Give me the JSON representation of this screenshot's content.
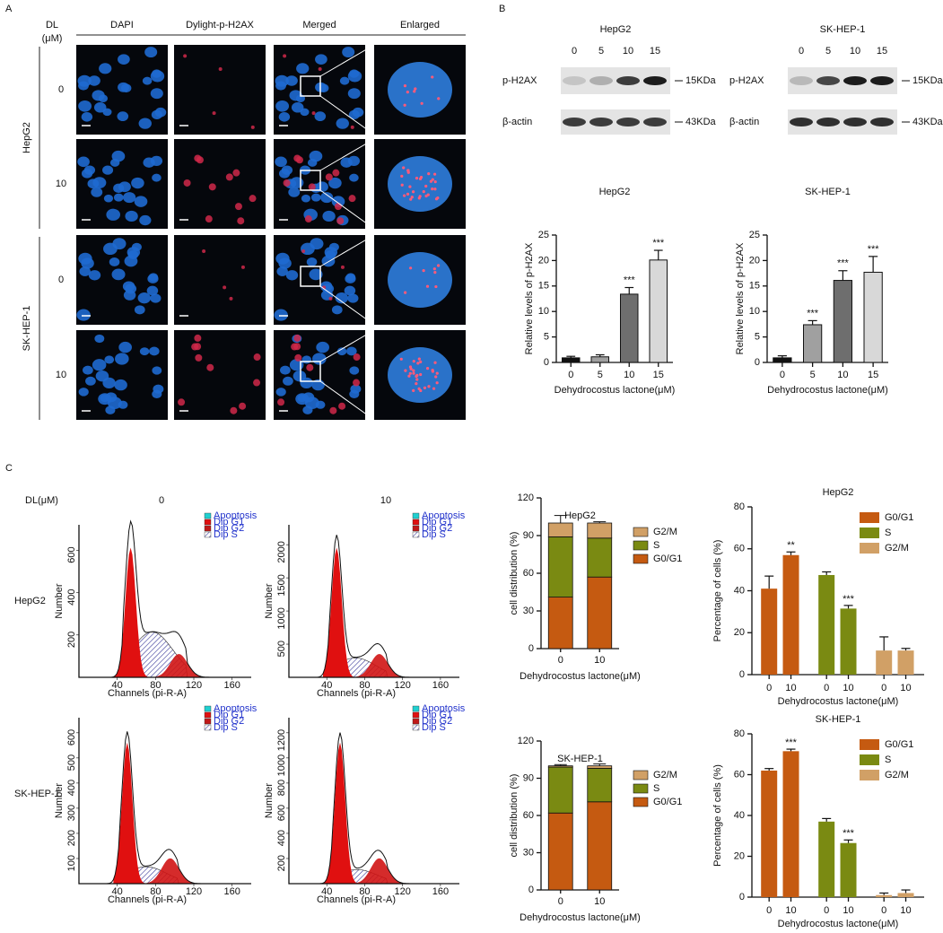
{
  "panel_labels": [
    "A",
    "B",
    "C"
  ],
  "panel_a": {
    "dl_label": "DL",
    "unit_label": "(μM)",
    "columns": [
      "DAPI",
      "Dylight-p-H2AX",
      "Merged",
      "Enlarged"
    ],
    "groups": [
      {
        "name": "HepG2",
        "doses": [
          "0",
          "10"
        ]
      },
      {
        "name": "SK-HEP-1",
        "doses": [
          "0",
          "10"
        ]
      }
    ]
  },
  "western": [
    {
      "cell_line": "HepG2",
      "lanes": [
        "0",
        "5",
        "10",
        "15"
      ],
      "bands": [
        {
          "protein": "p-H2AX",
          "size": "15KDa"
        },
        {
          "protein": "β-actin",
          "size": "43KDa"
        }
      ]
    },
    {
      "cell_line": "SK-HEP-1",
      "lanes": [
        "0",
        "5",
        "10",
        "15"
      ],
      "bands": [
        {
          "protein": "p-H2AX",
          "size": "15KDa"
        },
        {
          "protein": "β-actin",
          "size": "43KDa"
        }
      ]
    }
  ],
  "flow": {
    "dl_label": "DL(μM)",
    "doses": [
      "0",
      "10"
    ],
    "rows": [
      "HepG2",
      "SK-HEP-1"
    ],
    "legend": [
      "Apoptosis",
      "Dip G1",
      "Dip G2",
      "Dip S"
    ],
    "x_label": "Channels (pi-R-A)",
    "y_label": "Number",
    "xticks": [
      "40",
      "80",
      "120",
      "160"
    ],
    "panels": [
      {
        "yticks": [
          "200",
          "400",
          "600"
        ]
      },
      {
        "yticks": [
          "500",
          "1000",
          "1500",
          "2000"
        ]
      },
      {
        "yticks": [
          "100",
          "200",
          "300",
          "400",
          "500",
          "600"
        ]
      },
      {
        "yticks": [
          "200",
          "400",
          "600",
          "800",
          "1000",
          "1200"
        ]
      }
    ]
  },
  "chart_data": [
    {
      "type": "bar",
      "title": "HepG2",
      "x_label": "Dehydrocostus lactone(μM)",
      "y_label": "Relative levels of p-H2AX",
      "categories": [
        "0",
        "5",
        "10",
        "15"
      ],
      "values": [
        0.9,
        1.1,
        13.4,
        20.1
      ],
      "errors": [
        0.3,
        0.4,
        1.3,
        1.9
      ],
      "colors": [
        "#111111",
        "#a0a0a0",
        "#6e6e6e",
        "#d8d8d8"
      ],
      "annotations": [
        null,
        null,
        "***",
        "***"
      ],
      "ylim": [
        0,
        25
      ],
      "yticks": [
        0,
        5,
        10,
        15,
        20,
        25
      ]
    },
    {
      "type": "bar",
      "title": "SK-HEP-1",
      "x_label": "Dehydrocostus lactone(μM)",
      "y_label": "Relative levels of p-H2AX",
      "categories": [
        "0",
        "5",
        "10",
        "15"
      ],
      "values": [
        0.9,
        7.4,
        16.1,
        17.7
      ],
      "errors": [
        0.4,
        0.8,
        1.9,
        3.1
      ],
      "colors": [
        "#111111",
        "#a0a0a0",
        "#6e6e6e",
        "#d8d8d8"
      ],
      "annotations": [
        null,
        "***",
        "***",
        "***"
      ],
      "ylim": [
        0,
        25
      ],
      "yticks": [
        0,
        5,
        10,
        15,
        20,
        25
      ]
    },
    {
      "type": "stacked_bar",
      "title": "HepG2",
      "x_label": "Dehydrocostus lactone(μM)",
      "y_label": "cell distribution (%)",
      "categories": [
        "0",
        "10"
      ],
      "series": [
        {
          "name": "G0/G1",
          "color": "#c55a11",
          "values": [
            41,
            57
          ],
          "errors": [
            6,
            1
          ]
        },
        {
          "name": "S",
          "color": "#7a8a12",
          "values": [
            48,
            31
          ],
          "errors": [
            2,
            1.5
          ]
        },
        {
          "name": "G2/M",
          "color": "#d1a066",
          "values": [
            11,
            12
          ],
          "errors": [
            6,
            1
          ]
        }
      ],
      "ylim": [
        0,
        120
      ],
      "yticks": [
        0,
        30,
        60,
        90,
        120
      ]
    },
    {
      "type": "grouped_bar",
      "title": "HepG2",
      "x_label": "Dehydrocostus lactone(μM)",
      "y_label": "Percentage of cells (%)",
      "categories": [
        "0",
        "10"
      ],
      "series": [
        {
          "name": "G0/G1",
          "color": "#c55a11",
          "values": [
            41,
            57
          ],
          "errors": [
            6,
            1.5
          ],
          "annotations": [
            null,
            "**"
          ]
        },
        {
          "name": "S",
          "color": "#7a8a12",
          "values": [
            47.5,
            31.5
          ],
          "errors": [
            1.5,
            1.5
          ],
          "annotations": [
            null,
            "***"
          ]
        },
        {
          "name": "G2/M",
          "color": "#d1a066",
          "values": [
            11.5,
            11.5
          ],
          "errors": [
            6.5,
            1
          ],
          "annotations": [
            null,
            null
          ]
        }
      ],
      "ylim": [
        0,
        80
      ],
      "yticks": [
        0,
        20,
        40,
        60,
        80
      ]
    },
    {
      "type": "stacked_bar",
      "title": "SK-HEP-1",
      "x_label": "Dehydrocostus lactone(μM)",
      "y_label": "cell distribution (%)",
      "categories": [
        "0",
        "10"
      ],
      "series": [
        {
          "name": "G0/G1",
          "color": "#c55a11",
          "values": [
            62,
            71
          ],
          "errors": [
            1,
            1
          ]
        },
        {
          "name": "S",
          "color": "#7a8a12",
          "values": [
            37,
            27
          ],
          "errors": [
            1,
            1.5
          ]
        },
        {
          "name": "G2/M",
          "color": "#d1a066",
          "values": [
            1,
            2
          ],
          "errors": [
            1,
            1.5
          ]
        }
      ],
      "ylim": [
        0,
        120
      ],
      "yticks": [
        0,
        30,
        60,
        90,
        120
      ]
    },
    {
      "type": "grouped_bar",
      "title": "SK-HEP-1",
      "x_label": "Dehydrocostus lactone(μM)",
      "y_label": "Percentage of cells (%)",
      "categories": [
        "0",
        "10"
      ],
      "series": [
        {
          "name": "G0/G1",
          "color": "#c55a11",
          "values": [
            62,
            71.5
          ],
          "errors": [
            1,
            1
          ],
          "annotations": [
            null,
            "***"
          ]
        },
        {
          "name": "S",
          "color": "#7a8a12",
          "values": [
            37,
            26.5
          ],
          "errors": [
            1.5,
            1.5
          ],
          "annotations": [
            null,
            "***"
          ]
        },
        {
          "name": "G2/M",
          "color": "#d1a066",
          "values": [
            1,
            2
          ],
          "errors": [
            1,
            1.5
          ],
          "annotations": [
            null,
            null
          ]
        }
      ],
      "ylim": [
        0,
        80
      ],
      "yticks": [
        0,
        20,
        40,
        60,
        80
      ]
    }
  ]
}
